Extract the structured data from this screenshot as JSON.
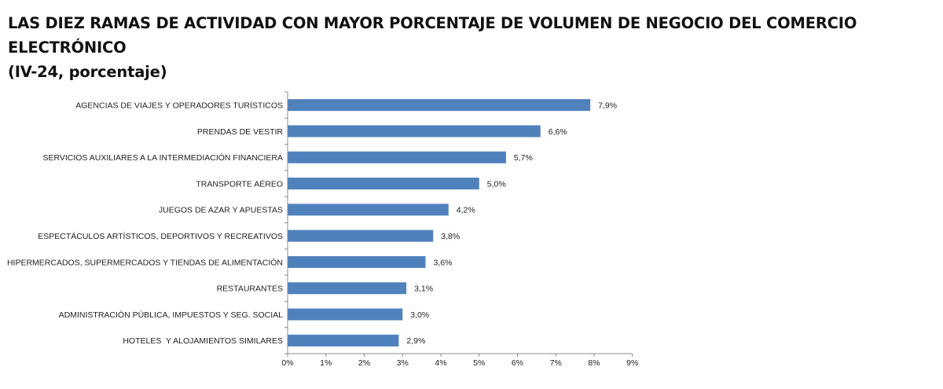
{
  "chart_data": {
    "type": "bar",
    "orientation": "horizontal",
    "title": "LAS DIEZ RAMAS DE ACTIVIDAD CON MAYOR PORCENTAJE DE VOLUMEN DE NEGOCIO DEL COMERCIO ELECTRÓNICO",
    "subtitle": "(IV-24, porcentaje)",
    "categories": [
      "AGENCIAS DE VIAJES Y OPERADORES TURÍSTICOS",
      "PRENDAS DE VESTIR",
      "SERVICIOS AUXILIARES A LA INTERMEDIACIÓN FINANCIERA",
      "TRANSPORTE AÉREO",
      "JUEGOS DE AZAR Y APUESTAS",
      "ESPECTÁCULOS ARTÍSTICOS, DEPORTIVOS Y RECREATIVOS",
      "HIPERMERCADOS, SUPERMERCADOS Y TIENDAS DE ALIMENTACIÓN",
      "RESTAURANTES",
      "ADMINISTRACIÓN PÚBLICA, IMPUESTOS Y SEG. SOCIAL",
      "HOTELES  Y ALOJAMIENTOS SIMILARES"
    ],
    "values": [
      7.9,
      6.6,
      5.7,
      5.0,
      4.2,
      3.8,
      3.6,
      3.1,
      3.0,
      2.9
    ],
    "data_labels": [
      "7,9%",
      "6,6%",
      "5,7%",
      "5,0%",
      "4,2%",
      "3,8%",
      "3,6%",
      "3,1%",
      "3,0%",
      "2,9%"
    ],
    "xlim": [
      0,
      9
    ],
    "x_ticks": [
      0,
      1,
      2,
      3,
      4,
      5,
      6,
      7,
      8,
      9
    ],
    "x_tick_labels": [
      "0%",
      "1%",
      "2%",
      "3%",
      "4%",
      "5%",
      "6%",
      "7%",
      "8%",
      "9%"
    ],
    "xlabel": "",
    "ylabel": "",
    "grid": false,
    "legend": "none",
    "bar_color": "#4f81bd"
  }
}
